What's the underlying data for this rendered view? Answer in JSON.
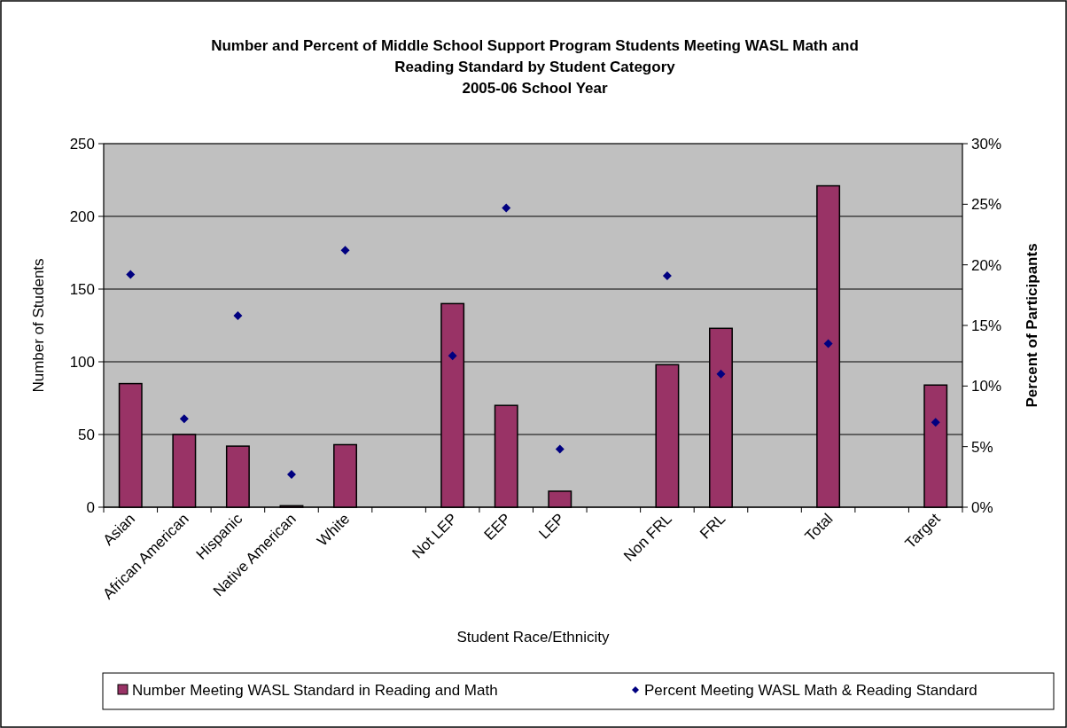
{
  "chart_data": {
    "type": "bar",
    "title": "Number and Percent of Middle School Support Program Students Meeting WASL Math and Reading Standard by Student Category\n2005-06 School Year",
    "xlabel": "Student Race/Ethnicity",
    "ylabel": "Number of Students",
    "y2label": "Percent of Participants",
    "categories": [
      "Asian",
      "African American",
      "Hispanic",
      "Native American",
      "White",
      null,
      "Not LEP",
      "EEP",
      "LEP",
      null,
      "Non FRL",
      "FRL",
      null,
      "Total",
      null,
      "Target"
    ],
    "series": [
      {
        "name": "Number Meeting WASL Standard in Reading and Math",
        "color": "#993366",
        "values": [
          85,
          50,
          42,
          1,
          43,
          null,
          140,
          70,
          11,
          null,
          98,
          123,
          null,
          221,
          null,
          84
        ]
      },
      {
        "name": "Percent Meeting WASL Math & Reading Standard",
        "type": "scatter",
        "axis": "y2",
        "color": "#000080",
        "marker": "diamond",
        "values": [
          19.2,
          7.3,
          15.8,
          2.7,
          21.2,
          null,
          12.5,
          24.7,
          4.8,
          null,
          19.1,
          11.0,
          null,
          13.5,
          null,
          7.0
        ]
      }
    ],
    "ylim": [
      0,
      250
    ],
    "yticks": [
      0,
      50,
      100,
      150,
      200,
      250
    ],
    "y2lim": [
      0,
      30
    ],
    "y2ticks": [
      {
        "value": 0,
        "label": "0%"
      },
      {
        "value": 5,
        "label": "5%"
      },
      {
        "value": 10,
        "label": "10%"
      },
      {
        "value": 15,
        "label": "15%"
      },
      {
        "value": 20,
        "label": "20%"
      },
      {
        "value": 25,
        "label": "25%"
      },
      {
        "value": 30,
        "label": "30%"
      }
    ],
    "grid": "y",
    "legend": "bottom"
  }
}
